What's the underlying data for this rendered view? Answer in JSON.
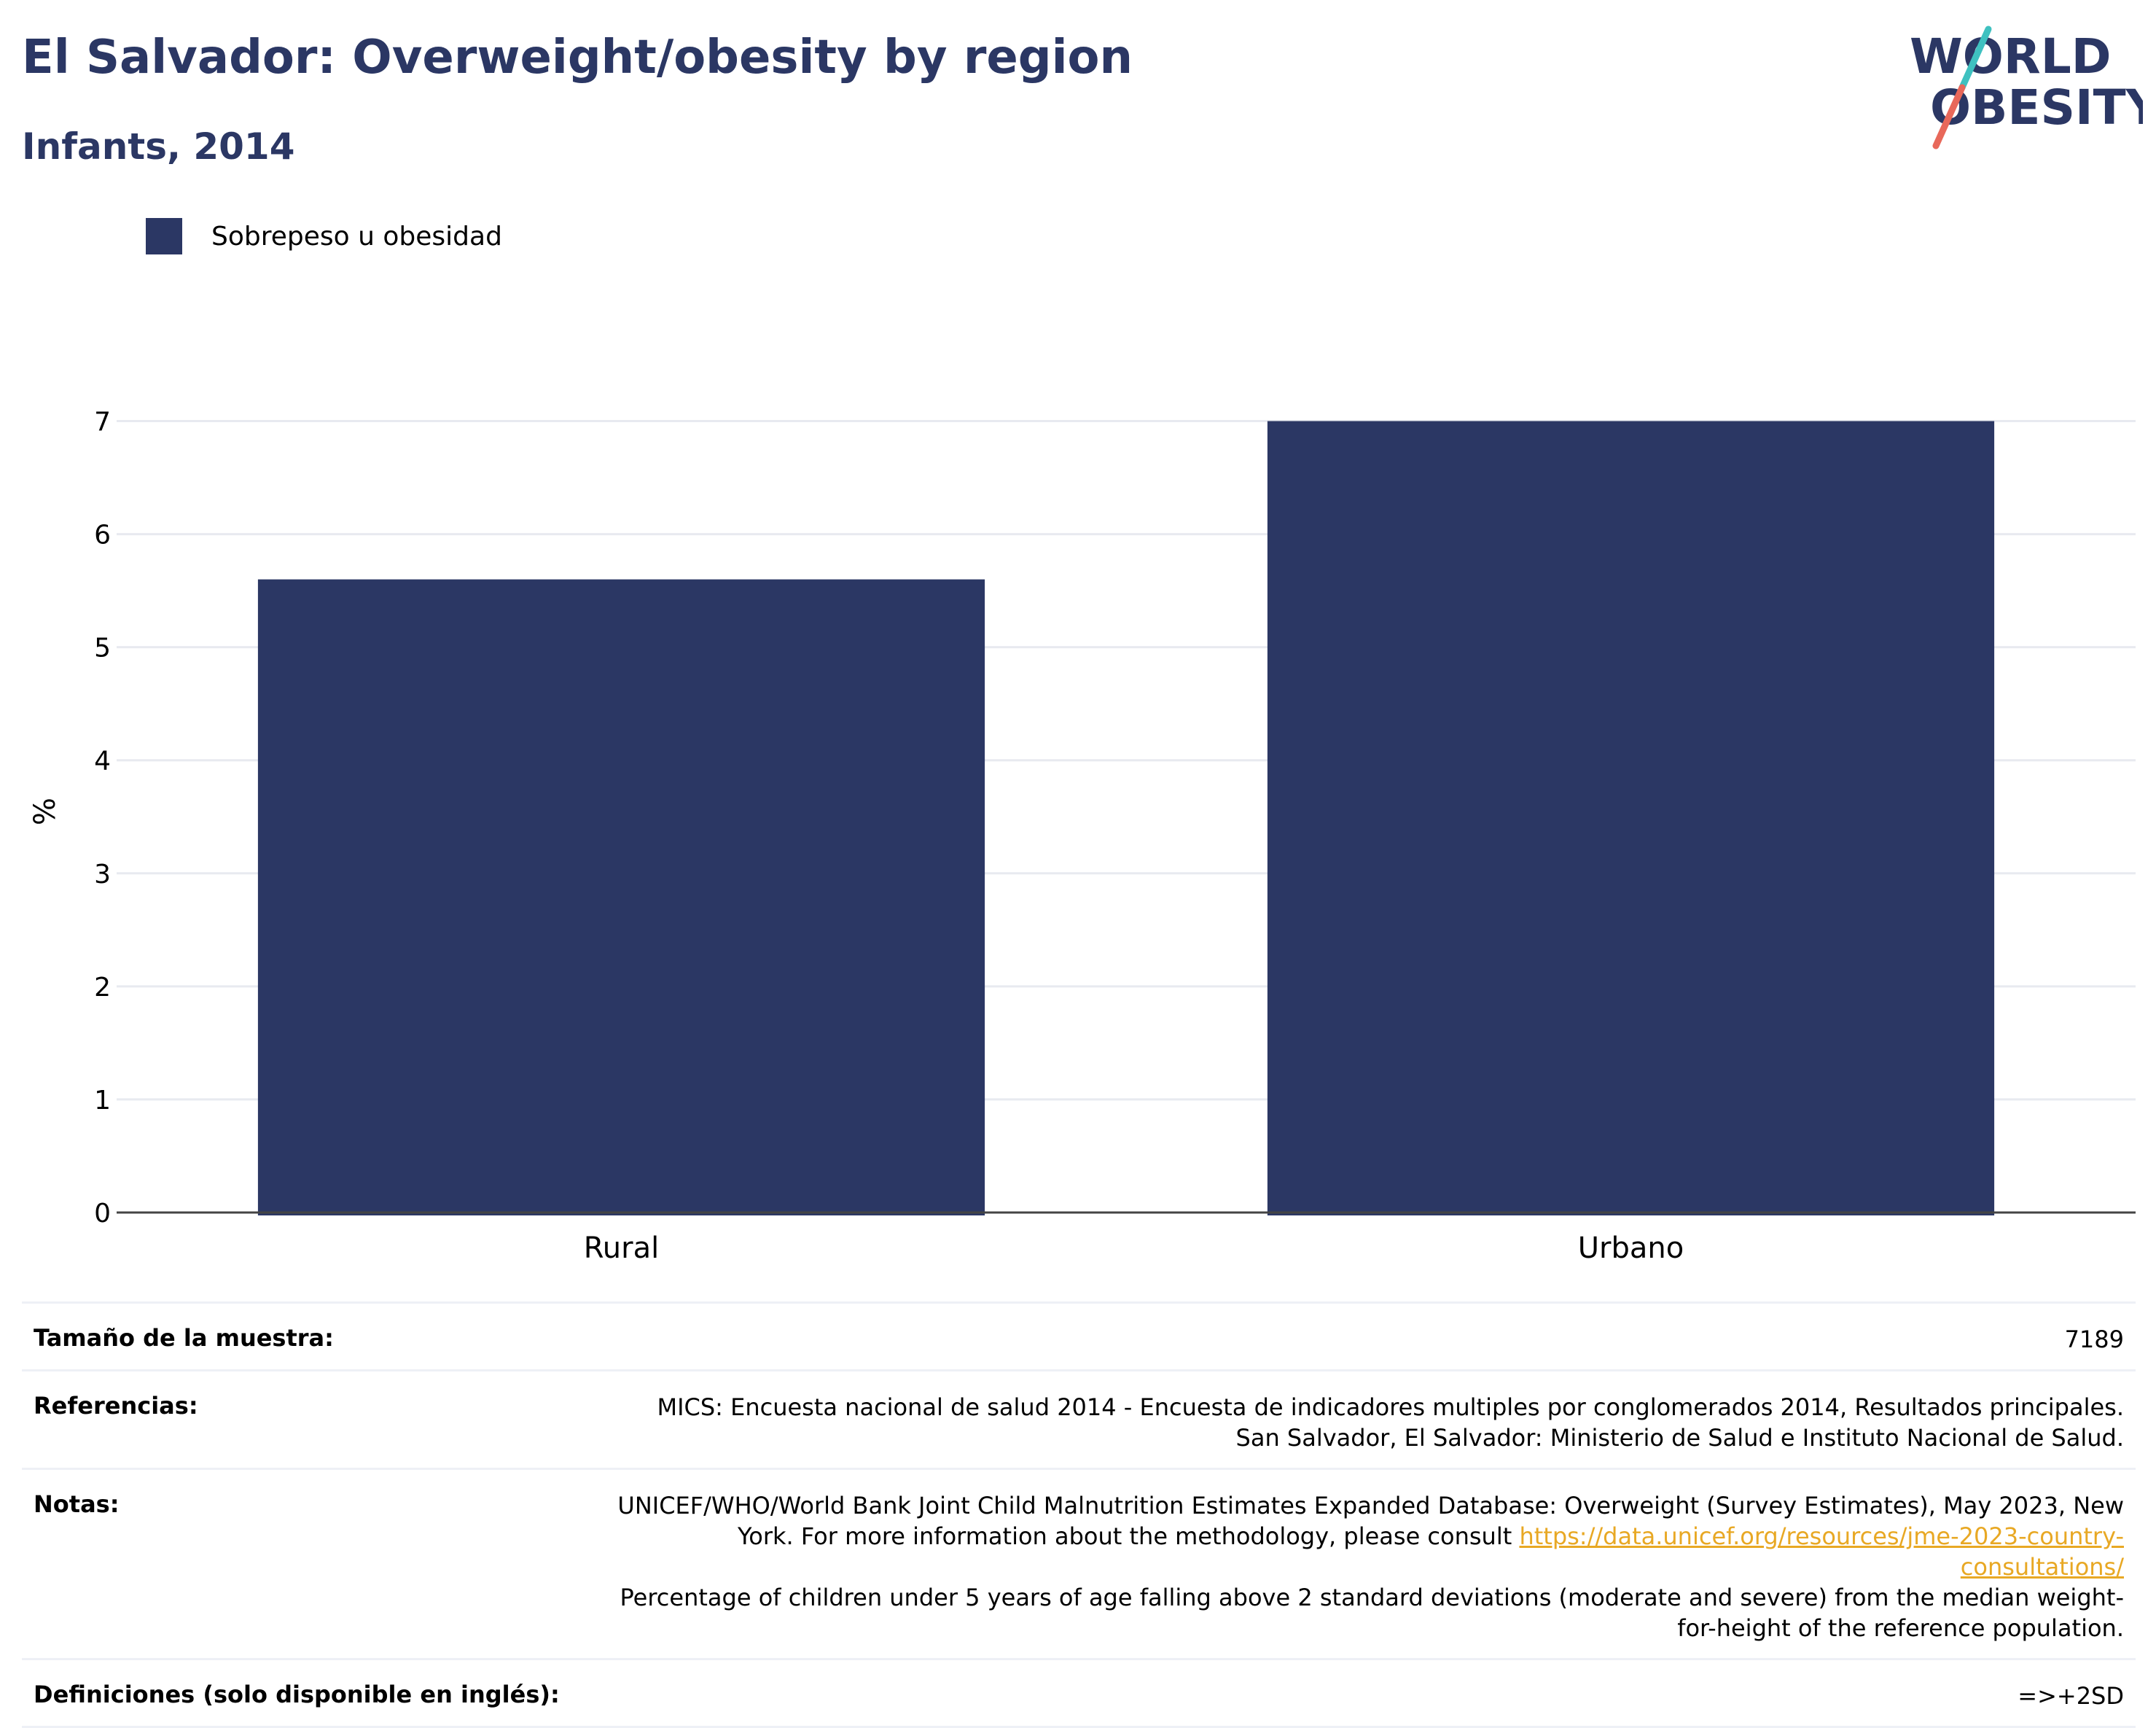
{
  "header": {
    "title": "El Salvador: Overweight/obesity by region",
    "subtitle": "Infants, 2014"
  },
  "logo": {
    "line1": "WORLD",
    "line2": "OBESITY",
    "colors": {
      "slash_top": "#3fc1c0",
      "slash_bottom": "#e8685a",
      "text": "#2b3764"
    }
  },
  "legend": {
    "label": "Sobrepeso u obesidad",
    "color": "#2b3764"
  },
  "chart_data": {
    "type": "bar",
    "categories": [
      "Rural",
      "Urbano"
    ],
    "series": [
      {
        "name": "Sobrepeso u obesidad",
        "values": [
          5.6,
          7.0
        ]
      }
    ],
    "ylabel": "%",
    "ylim": [
      0,
      7.5
    ],
    "yticks": [
      0,
      1,
      2,
      3,
      4,
      5,
      6,
      7
    ],
    "grid": true,
    "legend_position": "top-left",
    "bar_color": "#2b3764"
  },
  "info": {
    "sample_label": "Tamaño de la muestra:",
    "sample_value": "7189",
    "ref_label": "Referencias:",
    "ref_value": "MICS: Encuesta nacional de salud 2014 - Encuesta de indicadores multiples por conglomerados 2014, Resultados principales. San Salvador, El Salvador: Ministerio de Salud e Instituto Nacional de Salud.",
    "notes_label": "Notas:",
    "notes_text_1": "UNICEF/WHO/World Bank Joint Child Malnutrition Estimates Expanded Database: Overweight (Survey Estimates), May 2023, New York. For more information about the methodology, please consult ",
    "notes_link": "https://data.unicef.org/resources/jme-2023-country-consultations/",
    "notes_text_2": "Percentage of children under 5 years of age falling above 2 standard deviations (moderate and severe) from the median weight-for-height of the reference population.",
    "def_label": "Definiciones (solo disponible en inglés):",
    "def_value": "=>+2SD"
  }
}
